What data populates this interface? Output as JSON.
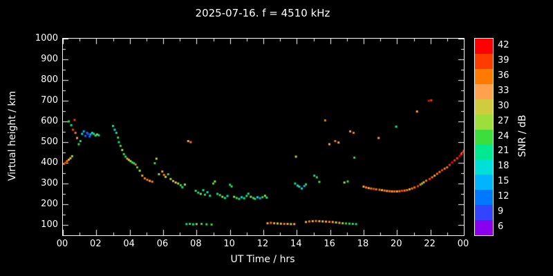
{
  "colors": {
    "background": "#000000",
    "frame": "#ffffff",
    "text": "#ffffff"
  },
  "chart_data": {
    "type": "scatter",
    "title": "2025-07-16. f = 4510 kHz",
    "xlabel": "UT Time / hrs",
    "ylabel": "Virtual height / km",
    "colorbar_label": "SNR / dB",
    "xlim": [
      0,
      24
    ],
    "ylim": [
      50,
      1000
    ],
    "grid": false,
    "x_ticks": {
      "values": [
        0,
        2,
        4,
        6,
        8,
        10,
        12,
        14,
        16,
        18,
        20,
        22,
        24
      ],
      "labels": [
        "00",
        "02",
        "04",
        "06",
        "08",
        "10",
        "12",
        "14",
        "16",
        "18",
        "20",
        "22",
        "00"
      ]
    },
    "y_ticks": [
      100,
      200,
      300,
      400,
      500,
      600,
      700,
      800,
      900,
      1000
    ],
    "snr_scale": {
      "values": [
        6,
        9,
        12,
        15,
        18,
        21,
        24,
        27,
        30,
        33,
        36,
        39,
        42
      ],
      "colors": [
        "#8800ee",
        "#3344ff",
        "#0077ff",
        "#00b4ff",
        "#00e0d8",
        "#00e890",
        "#3ddd3d",
        "#9ddd3c",
        "#cfcc3f",
        "#ffa14f",
        "#ff7a00",
        "#ff3c00",
        "#ff0000"
      ]
    },
    "points": [
      [
        0.05,
        395,
        36
      ],
      [
        0.15,
        400,
        39
      ],
      [
        0.25,
        408,
        36
      ],
      [
        0.35,
        415,
        33
      ],
      [
        0.45,
        422,
        30
      ],
      [
        0.55,
        432,
        27
      ],
      [
        0.35,
        600,
        24
      ],
      [
        0.5,
        582,
        21
      ],
      [
        0.6,
        560,
        39
      ],
      [
        0.7,
        607,
        39
      ],
      [
        0.75,
        545,
        36
      ],
      [
        0.85,
        520,
        33
      ],
      [
        0.95,
        490,
        24
      ],
      [
        1.05,
        505,
        21
      ],
      [
        1.15,
        540,
        18
      ],
      [
        1.25,
        552,
        15
      ],
      [
        1.35,
        530,
        12
      ],
      [
        1.45,
        545,
        12
      ],
      [
        1.5,
        540,
        9
      ],
      [
        1.6,
        527,
        12
      ],
      [
        1.65,
        537,
        15
      ],
      [
        1.75,
        545,
        18
      ],
      [
        1.85,
        540,
        21
      ],
      [
        1.95,
        532,
        24
      ],
      [
        2.05,
        537,
        27
      ],
      [
        2.15,
        533,
        21
      ],
      [
        3.0,
        578,
        21
      ],
      [
        3.1,
        560,
        18
      ],
      [
        3.2,
        545,
        21
      ],
      [
        3.3,
        522,
        24
      ],
      [
        3.35,
        500,
        21
      ],
      [
        3.45,
        482,
        24
      ],
      [
        3.55,
        462,
        27
      ],
      [
        3.65,
        442,
        24
      ],
      [
        3.75,
        430,
        21
      ],
      [
        3.85,
        420,
        33
      ],
      [
        3.95,
        414,
        30
      ],
      [
        4.05,
        408,
        27
      ],
      [
        4.15,
        402,
        24
      ],
      [
        4.25,
        398,
        21
      ],
      [
        4.35,
        392,
        36
      ],
      [
        4.45,
        378,
        24
      ],
      [
        4.6,
        362,
        27
      ],
      [
        4.75,
        338,
        33
      ],
      [
        4.9,
        325,
        36
      ],
      [
        5.05,
        318,
        36
      ],
      [
        5.2,
        313,
        33
      ],
      [
        5.35,
        309,
        36
      ],
      [
        5.5,
        398,
        24
      ],
      [
        5.6,
        420,
        30
      ],
      [
        5.75,
        345,
        27
      ],
      [
        5.95,
        358,
        33
      ],
      [
        6.05,
        342,
        36
      ],
      [
        6.15,
        332,
        30
      ],
      [
        6.3,
        345,
        24
      ],
      [
        6.45,
        322,
        27
      ],
      [
        6.6,
        312,
        33
      ],
      [
        6.75,
        305,
        30
      ],
      [
        6.9,
        300,
        27
      ],
      [
        7.05,
        292,
        24
      ],
      [
        7.15,
        282,
        21
      ],
      [
        7.3,
        295,
        27
      ],
      [
        7.5,
        505,
        33
      ],
      [
        7.65,
        500,
        36
      ],
      [
        7.95,
        265,
        24
      ],
      [
        8.1,
        256,
        21
      ],
      [
        8.25,
        250,
        27
      ],
      [
        8.4,
        268,
        21
      ],
      [
        8.5,
        246,
        24
      ],
      [
        8.65,
        258,
        18
      ],
      [
        8.8,
        241,
        21
      ],
      [
        9.0,
        300,
        24
      ],
      [
        9.1,
        310,
        27
      ],
      [
        9.25,
        250,
        21
      ],
      [
        9.4,
        244,
        24
      ],
      [
        9.55,
        236,
        27
      ],
      [
        9.7,
        230,
        21
      ],
      [
        9.85,
        240,
        18
      ],
      [
        10.0,
        294,
        21
      ],
      [
        10.1,
        286,
        24
      ],
      [
        10.25,
        236,
        27
      ],
      [
        10.4,
        230,
        24
      ],
      [
        10.55,
        226,
        21
      ],
      [
        10.7,
        234,
        18
      ],
      [
        10.85,
        229,
        21
      ],
      [
        11.0,
        240,
        24
      ],
      [
        11.1,
        251,
        21
      ],
      [
        11.25,
        236,
        27
      ],
      [
        11.4,
        230,
        24
      ],
      [
        11.5,
        226,
        21
      ],
      [
        11.65,
        234,
        18
      ],
      [
        11.8,
        229,
        15
      ],
      [
        11.95,
        234,
        24
      ],
      [
        12.1,
        241,
        27
      ],
      [
        12.2,
        232,
        21
      ],
      [
        7.4,
        104,
        21
      ],
      [
        7.6,
        105,
        24
      ],
      [
        7.8,
        103,
        21
      ],
      [
        8.0,
        104,
        27
      ],
      [
        8.3,
        105,
        24
      ],
      [
        8.6,
        103,
        21
      ],
      [
        8.9,
        102,
        24
      ],
      [
        12.25,
        108,
        33
      ],
      [
        12.45,
        110,
        36
      ],
      [
        12.65,
        108,
        33
      ],
      [
        12.85,
        107,
        30
      ],
      [
        13.05,
        106,
        33
      ],
      [
        13.25,
        105,
        36
      ],
      [
        13.45,
        105,
        33
      ],
      [
        13.65,
        104,
        30
      ],
      [
        13.85,
        104,
        33
      ],
      [
        14.55,
        114,
        33
      ],
      [
        14.75,
        117,
        36
      ],
      [
        14.95,
        118,
        33
      ],
      [
        15.15,
        119,
        36
      ],
      [
        15.35,
        118,
        33
      ],
      [
        15.55,
        117,
        30
      ],
      [
        15.75,
        116,
        33
      ],
      [
        15.95,
        115,
        36
      ],
      [
        16.15,
        114,
        33
      ],
      [
        16.35,
        112,
        30
      ],
      [
        16.55,
        110,
        33
      ],
      [
        16.75,
        108,
        27
      ],
      [
        16.95,
        107,
        24
      ],
      [
        17.15,
        106,
        21
      ],
      [
        17.35,
        105,
        24
      ],
      [
        17.55,
        104,
        21
      ],
      [
        13.95,
        430,
        30
      ],
      [
        13.9,
        300,
        21
      ],
      [
        14.05,
        290,
        18
      ],
      [
        14.15,
        285,
        21
      ],
      [
        14.3,
        276,
        18
      ],
      [
        14.45,
        288,
        15
      ],
      [
        14.55,
        296,
        24
      ],
      [
        15.05,
        338,
        21
      ],
      [
        15.2,
        330,
        24
      ],
      [
        15.35,
        308,
        24
      ],
      [
        15.7,
        605,
        36
      ],
      [
        15.95,
        490,
        33
      ],
      [
        16.3,
        505,
        36
      ],
      [
        16.5,
        498,
        33
      ],
      [
        16.85,
        305,
        27
      ],
      [
        17.05,
        310,
        24
      ],
      [
        17.2,
        552,
        33
      ],
      [
        17.4,
        545,
        36
      ],
      [
        17.45,
        425,
        24
      ],
      [
        18.0,
        285,
        33
      ],
      [
        18.15,
        281,
        36
      ],
      [
        18.3,
        278,
        33
      ],
      [
        18.45,
        276,
        36
      ],
      [
        18.6,
        274,
        39
      ],
      [
        18.75,
        272,
        36
      ],
      [
        18.9,
        520,
        33
      ],
      [
        18.95,
        270,
        36
      ],
      [
        19.1,
        268,
        33
      ],
      [
        19.25,
        266,
        36
      ],
      [
        19.4,
        264,
        33
      ],
      [
        19.55,
        263,
        36
      ],
      [
        19.7,
        262,
        33
      ],
      [
        19.85,
        262,
        36
      ],
      [
        19.95,
        575,
        21
      ],
      [
        20.0,
        262,
        33
      ],
      [
        20.15,
        263,
        36
      ],
      [
        20.3,
        265,
        39
      ],
      [
        20.45,
        266,
        36
      ],
      [
        20.6,
        268,
        36
      ],
      [
        20.75,
        272,
        33
      ],
      [
        20.9,
        276,
        36
      ],
      [
        21.05,
        281,
        36
      ],
      [
        21.2,
        648,
        33
      ],
      [
        21.25,
        287,
        39
      ],
      [
        21.4,
        295,
        36
      ],
      [
        21.5,
        300,
        24
      ],
      [
        21.6,
        306,
        33
      ],
      [
        21.75,
        314,
        36
      ],
      [
        21.9,
        700,
        42
      ],
      [
        21.95,
        322,
        39
      ],
      [
        22.05,
        702,
        39
      ],
      [
        22.1,
        330,
        36
      ],
      [
        22.25,
        338,
        33
      ],
      [
        22.4,
        347,
        36
      ],
      [
        22.55,
        356,
        36
      ],
      [
        22.7,
        364,
        39
      ],
      [
        22.85,
        372,
        36
      ],
      [
        23.0,
        378,
        36
      ],
      [
        23.15,
        390,
        39
      ],
      [
        23.3,
        402,
        42
      ],
      [
        23.45,
        412,
        39
      ],
      [
        23.6,
        422,
        39
      ],
      [
        23.75,
        433,
        42
      ],
      [
        23.85,
        442,
        39
      ],
      [
        23.95,
        452,
        42
      ],
      [
        24.0,
        458,
        39
      ]
    ]
  }
}
